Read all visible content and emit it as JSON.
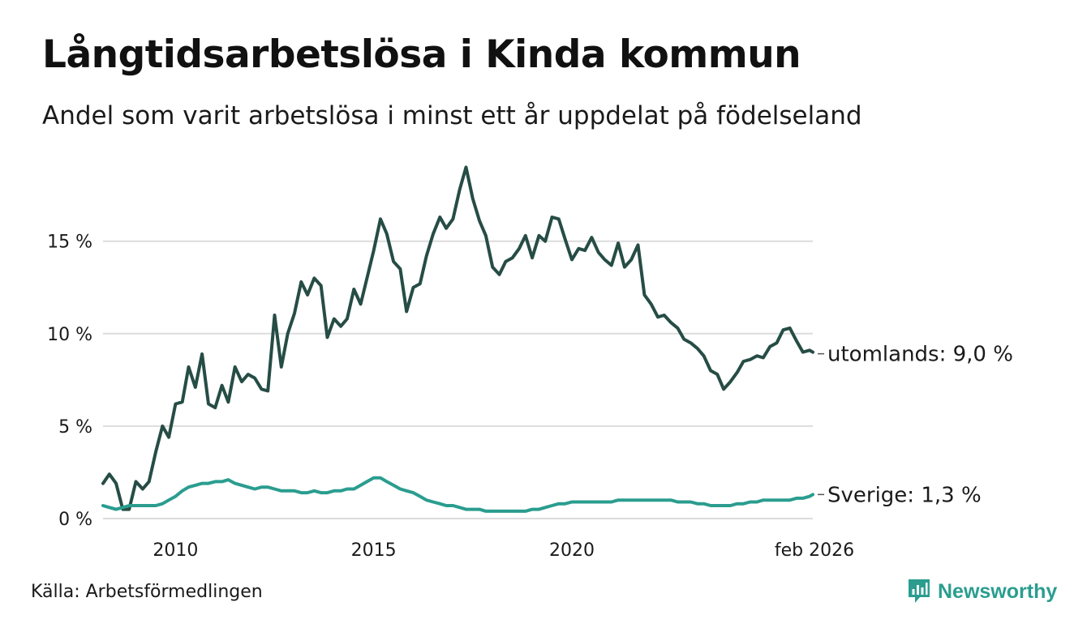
{
  "title": "Långtidsarbetslösa i Kinda kommun",
  "subtitle": "Andel som varit arbetslösa i minst ett år uppdelat på födelseland",
  "source": "Källa: Arbetsförmedlingen",
  "brand": "Newsworthy",
  "colors": {
    "utomlands": "#264d45",
    "sverige": "#2a9d8f",
    "grid": "#dcdcdc",
    "brand": "#2a9d8f"
  },
  "chart_data": {
    "type": "line",
    "title": "Långtidsarbetslösa i Kinda kommun",
    "xlabel": "",
    "ylabel": "",
    "ylim": [
      0,
      19.5
    ],
    "xlim": [
      2008.17,
      2026.08
    ],
    "y_ticks": [
      0,
      5,
      10,
      15
    ],
    "y_tick_labels": [
      "0 %",
      "5 %",
      "10 %",
      "15 %"
    ],
    "x_ticks": [
      2010,
      2015,
      2020,
      2026.08
    ],
    "x_tick_labels": [
      "2010",
      "2015",
      "2020",
      "feb 2026"
    ],
    "series": [
      {
        "name": "utomlands",
        "end_label": "utomlands: 9,0 %",
        "x": [
          2008.17,
          2008.33,
          2008.5,
          2008.67,
          2008.83,
          2009.0,
          2009.17,
          2009.33,
          2009.5,
          2009.67,
          2009.83,
          2010.0,
          2010.17,
          2010.33,
          2010.5,
          2010.67,
          2010.83,
          2011.0,
          2011.17,
          2011.33,
          2011.5,
          2011.67,
          2011.83,
          2012.0,
          2012.17,
          2012.33,
          2012.5,
          2012.67,
          2012.83,
          2013.0,
          2013.17,
          2013.33,
          2013.5,
          2013.67,
          2013.83,
          2014.0,
          2014.17,
          2014.33,
          2014.5,
          2014.67,
          2014.83,
          2015.0,
          2015.17,
          2015.33,
          2015.5,
          2015.67,
          2015.83,
          2016.0,
          2016.17,
          2016.33,
          2016.5,
          2016.67,
          2016.83,
          2017.0,
          2017.17,
          2017.33,
          2017.5,
          2017.67,
          2017.83,
          2018.0,
          2018.17,
          2018.33,
          2018.5,
          2018.67,
          2018.83,
          2019.0,
          2019.17,
          2019.33,
          2019.5,
          2019.67,
          2019.83,
          2020.0,
          2020.17,
          2020.33,
          2020.5,
          2020.67,
          2020.83,
          2021.0,
          2021.17,
          2021.33,
          2021.5,
          2021.67,
          2021.83,
          2022.0,
          2022.17,
          2022.33,
          2022.5,
          2022.67,
          2022.83,
          2023.0,
          2023.17,
          2023.33,
          2023.5,
          2023.67,
          2023.83,
          2024.0,
          2024.17,
          2024.33,
          2024.5,
          2024.67,
          2024.83,
          2025.0,
          2025.17,
          2025.33,
          2025.5,
          2025.67,
          2025.83,
          2026.0,
          2026.08
        ],
        "values": [
          1.9,
          2.4,
          1.9,
          0.5,
          0.5,
          2.0,
          1.6,
          2.0,
          3.6,
          5.0,
          4.4,
          6.2,
          6.3,
          8.2,
          7.1,
          8.9,
          6.2,
          6.0,
          7.2,
          6.3,
          8.2,
          7.4,
          7.8,
          7.6,
          7.0,
          6.9,
          11.0,
          8.2,
          10.0,
          11.1,
          12.8,
          12.1,
          13.0,
          12.6,
          9.8,
          10.8,
          10.4,
          10.8,
          12.4,
          11.6,
          13.0,
          14.5,
          16.2,
          15.4,
          13.9,
          13.5,
          11.2,
          12.5,
          12.7,
          14.2,
          15.4,
          16.3,
          15.7,
          16.2,
          17.8,
          19.0,
          17.3,
          16.1,
          15.3,
          13.6,
          13.2,
          13.9,
          14.1,
          14.6,
          15.3,
          14.1,
          15.3,
          15.0,
          16.3,
          16.2,
          15.1,
          14.0,
          14.6,
          14.5,
          15.2,
          14.4,
          14.0,
          13.7,
          14.9,
          13.6,
          14.0,
          14.8,
          12.1,
          11.6,
          10.9,
          11.0,
          10.6,
          10.3,
          9.7,
          9.5,
          9.2,
          8.8,
          8.0,
          7.8,
          7.0,
          7.4,
          7.9,
          8.5,
          8.6,
          8.8,
          8.7,
          9.3,
          9.5,
          10.2,
          10.3,
          9.6,
          9.0,
          9.1,
          9.0
        ]
      },
      {
        "name": "Sverige",
        "end_label": "Sverige: 1,3 %",
        "x": [
          2008.17,
          2008.33,
          2008.5,
          2008.67,
          2008.83,
          2009.0,
          2009.17,
          2009.33,
          2009.5,
          2009.67,
          2009.83,
          2010.0,
          2010.17,
          2010.33,
          2010.5,
          2010.67,
          2010.83,
          2011.0,
          2011.17,
          2011.33,
          2011.5,
          2011.67,
          2011.83,
          2012.0,
          2012.17,
          2012.33,
          2012.5,
          2012.67,
          2012.83,
          2013.0,
          2013.17,
          2013.33,
          2013.5,
          2013.67,
          2013.83,
          2014.0,
          2014.17,
          2014.33,
          2014.5,
          2014.67,
          2014.83,
          2015.0,
          2015.17,
          2015.33,
          2015.5,
          2015.67,
          2015.83,
          2016.0,
          2016.17,
          2016.33,
          2016.5,
          2016.67,
          2016.83,
          2017.0,
          2017.17,
          2017.33,
          2017.5,
          2017.67,
          2017.83,
          2018.0,
          2018.17,
          2018.33,
          2018.5,
          2018.67,
          2018.83,
          2019.0,
          2019.17,
          2019.33,
          2019.5,
          2019.67,
          2019.83,
          2020.0,
          2020.17,
          2020.33,
          2020.5,
          2020.67,
          2020.83,
          2021.0,
          2021.17,
          2021.33,
          2021.5,
          2021.67,
          2021.83,
          2022.0,
          2022.17,
          2022.33,
          2022.5,
          2022.67,
          2022.83,
          2023.0,
          2023.17,
          2023.33,
          2023.5,
          2023.67,
          2023.83,
          2024.0,
          2024.17,
          2024.33,
          2024.5,
          2024.67,
          2024.83,
          2025.0,
          2025.17,
          2025.33,
          2025.5,
          2025.67,
          2025.83,
          2026.0,
          2026.08
        ],
        "values": [
          0.7,
          0.6,
          0.5,
          0.6,
          0.7,
          0.7,
          0.7,
          0.7,
          0.7,
          0.8,
          1.0,
          1.2,
          1.5,
          1.7,
          1.8,
          1.9,
          1.9,
          2.0,
          2.0,
          2.1,
          1.9,
          1.8,
          1.7,
          1.6,
          1.7,
          1.7,
          1.6,
          1.5,
          1.5,
          1.5,
          1.4,
          1.4,
          1.5,
          1.4,
          1.4,
          1.5,
          1.5,
          1.6,
          1.6,
          1.8,
          2.0,
          2.2,
          2.2,
          2.0,
          1.8,
          1.6,
          1.5,
          1.4,
          1.2,
          1.0,
          0.9,
          0.8,
          0.7,
          0.7,
          0.6,
          0.5,
          0.5,
          0.5,
          0.4,
          0.4,
          0.4,
          0.4,
          0.4,
          0.4,
          0.4,
          0.5,
          0.5,
          0.6,
          0.7,
          0.8,
          0.8,
          0.9,
          0.9,
          0.9,
          0.9,
          0.9,
          0.9,
          0.9,
          1.0,
          1.0,
          1.0,
          1.0,
          1.0,
          1.0,
          1.0,
          1.0,
          1.0,
          0.9,
          0.9,
          0.9,
          0.8,
          0.8,
          0.7,
          0.7,
          0.7,
          0.7,
          0.8,
          0.8,
          0.9,
          0.9,
          1.0,
          1.0,
          1.0,
          1.0,
          1.0,
          1.1,
          1.1,
          1.2,
          1.3
        ]
      }
    ]
  }
}
